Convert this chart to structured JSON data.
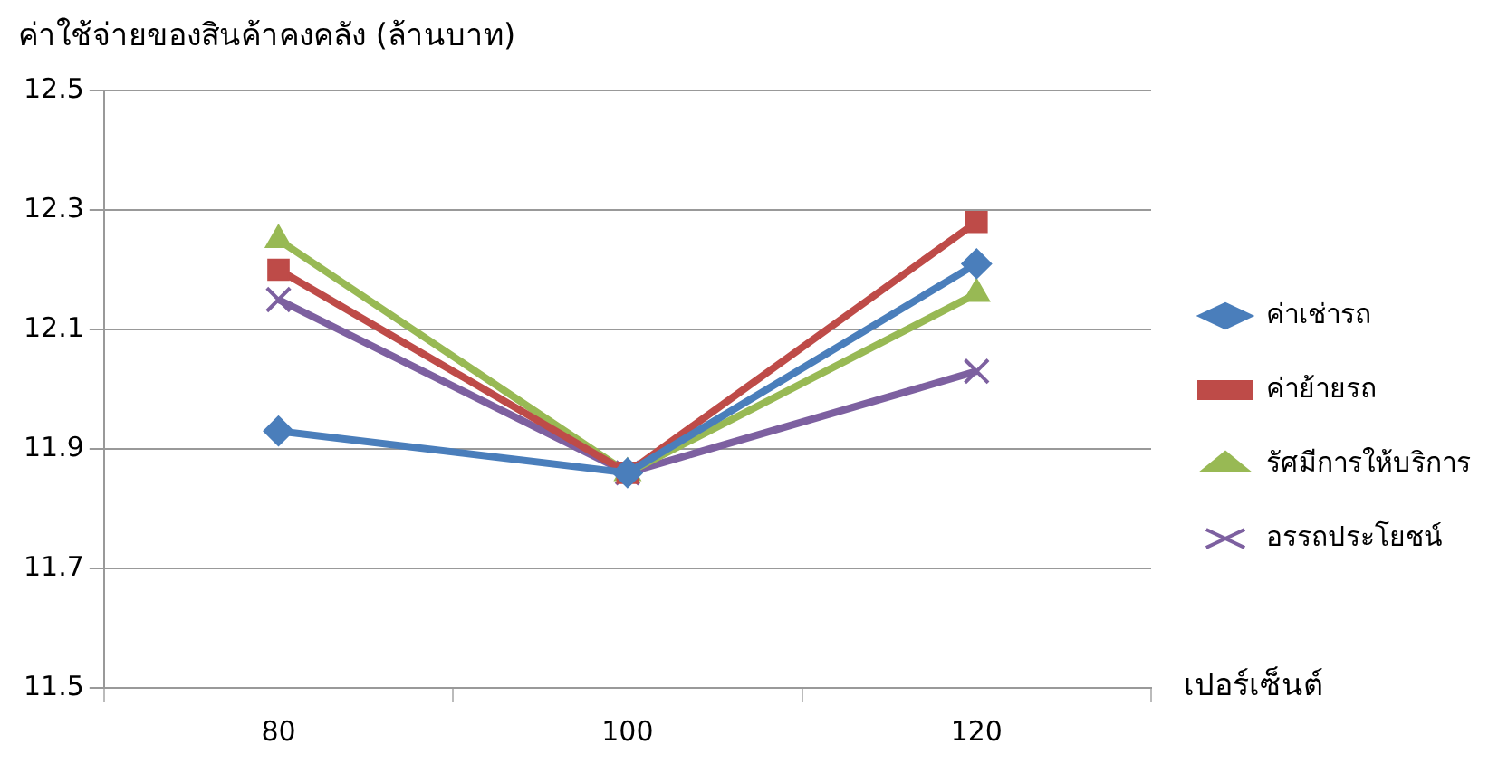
{
  "chart_data": {
    "type": "line",
    "ylabel": "ค่าใช้จ่ายของสินค้าคงคลัง (ล้านบาท)",
    "xlabel": "เปอร์เซ็นต์",
    "categories": [
      "80",
      "100",
      "120"
    ],
    "series": [
      {
        "name": "ค่าเช่ารถ",
        "color": "#4a7ebb",
        "marker": "diamond",
        "values": [
          11.93,
          11.86,
          12.21
        ]
      },
      {
        "name": "ค่าย้ายรถ",
        "color": "#be4b48",
        "marker": "square",
        "values": [
          12.2,
          11.86,
          12.28
        ]
      },
      {
        "name": "รัศมีการให้บริการ",
        "color": "#98b954",
        "marker": "triangle",
        "values": [
          12.25,
          11.86,
          12.16
        ]
      },
      {
        "name": "อรรถประโยชน์",
        "color": "#7d60a0",
        "marker": "cross",
        "values": [
          12.15,
          11.86,
          12.03
        ]
      }
    ],
    "ylim": [
      11.5,
      12.5
    ],
    "yticks": [
      11.5,
      11.7,
      11.9,
      12.1,
      12.3,
      12.5
    ],
    "grid": "y",
    "legend": "right",
    "line_style": "solid"
  }
}
